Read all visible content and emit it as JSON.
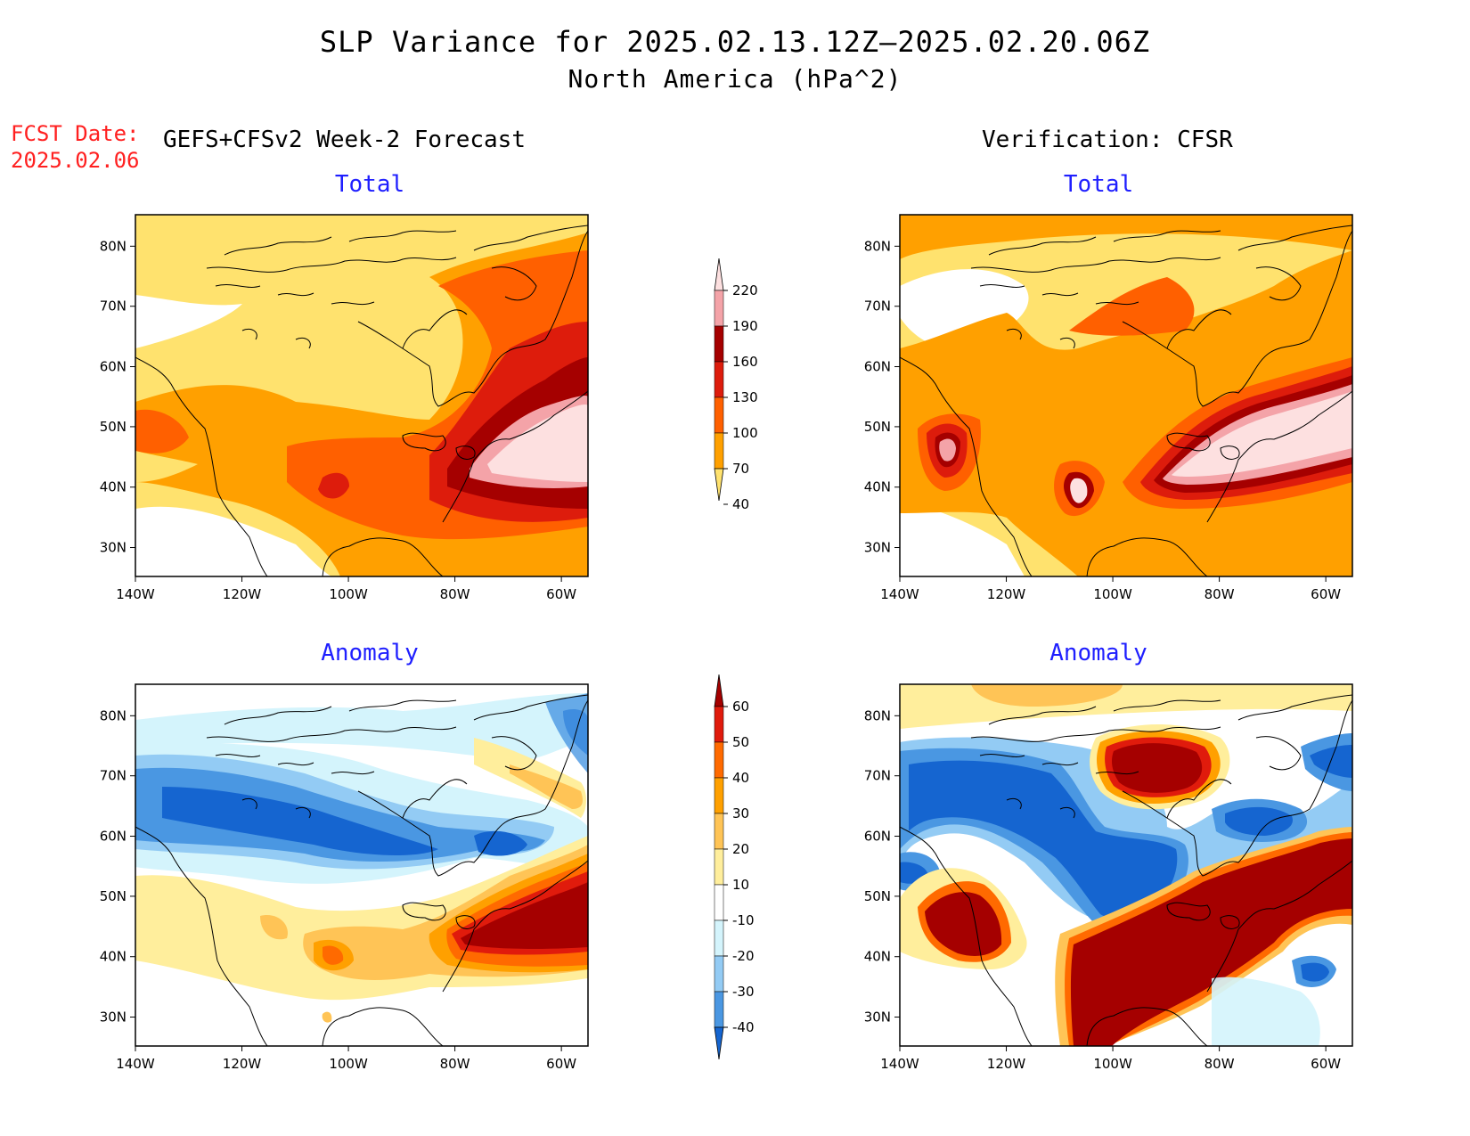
{
  "title": "SLP Variance for 2025.02.13.12Z—2025.02.20.06Z",
  "subtitle": "North America (hPa^2)",
  "forecast_date_label": "FCST Date:",
  "forecast_date": "2025.02.06",
  "left_column_title": "GEFS+CFSv2 Week-2 Forecast",
  "right_column_title": "Verification: CFSR",
  "panels": [
    {
      "id": "fc-total",
      "title": "Total"
    },
    {
      "id": "vf-total",
      "title": "Total"
    },
    {
      "id": "fc-anom",
      "title": "Anomaly"
    },
    {
      "id": "vf-anom",
      "title": "Anomaly"
    }
  ],
  "axes": {
    "lon_labels": [
      "140W",
      "120W",
      "100W",
      "80W",
      "60W"
    ],
    "lat_labels": [
      "80N",
      "70N",
      "60N",
      "50N",
      "40N",
      "30N"
    ]
  },
  "total_colorbar": {
    "levels": [
      "220",
      "190",
      "160",
      "130",
      "100",
      "70",
      "40"
    ],
    "colors": [
      "#fde0e0",
      "#f4a3a8",
      "#a50000",
      "#dd1c0c",
      "#ff6000",
      "#ffa000",
      "#ffe26e"
    ]
  },
  "anomaly_colorbar": {
    "levels": [
      "60",
      "50",
      "40",
      "30",
      "20",
      "10",
      "-10",
      "-20",
      "-30",
      "-40"
    ],
    "colors": [
      "#a50000",
      "#e01b0c",
      "#ff6a00",
      "#ffa000",
      "#ffc456",
      "#ffee9c",
      "#ffffff",
      "#d4f4fc",
      "#93cbf4",
      "#4a97e2",
      "#1565d0"
    ]
  }
}
